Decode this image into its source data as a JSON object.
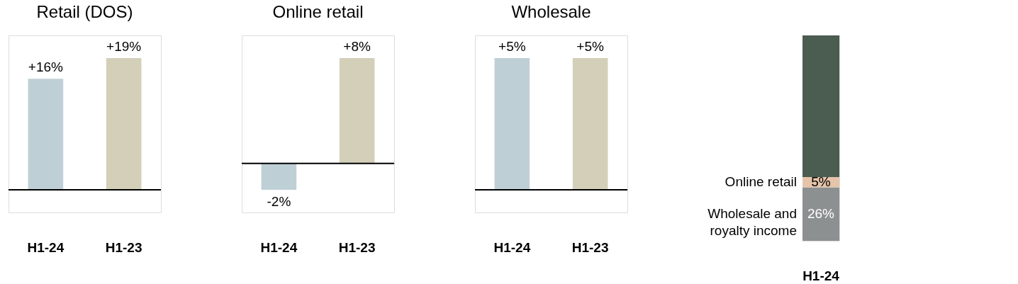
{
  "chart_data": [
    {
      "type": "bar",
      "title": "Retail (DOS)",
      "categories": [
        "H1-24",
        "H1-23"
      ],
      "values": [
        16,
        19
      ],
      "colors": [
        "#bfcfd6",
        "#d4cfb9"
      ],
      "value_labels": [
        "+16%",
        "+19%"
      ]
    },
    {
      "type": "bar",
      "title": "Online retail",
      "categories": [
        "H1-24",
        "H1-23"
      ],
      "values": [
        -2,
        8
      ],
      "colors": [
        "#bfcfd6",
        "#d4cfb9"
      ],
      "value_labels": [
        "-2%",
        "+8%"
      ]
    },
    {
      "type": "bar",
      "title": "Wholesale",
      "categories": [
        "H1-24",
        "H1-23"
      ],
      "values": [
        5,
        5
      ],
      "colors": [
        "#bfcfd6",
        "#d4cfb9"
      ],
      "value_labels": [
        "+5%",
        "+5%"
      ]
    },
    {
      "type": "bar",
      "stacked": true,
      "categories": [
        "H1-24"
      ],
      "series": [
        {
          "name": "Wholesale and royalty income",
          "color": "#8c9091",
          "values": [
            26
          ],
          "value_labels": [
            "26%"
          ]
        },
        {
          "name": "Online retail",
          "color": "#e5c4aa",
          "values": [
            5
          ],
          "value_labels": [
            "5%"
          ]
        },
        {
          "color": "#4b5c50",
          "values": [
            69
          ],
          "value_labels": [
            null
          ]
        }
      ]
    }
  ]
}
